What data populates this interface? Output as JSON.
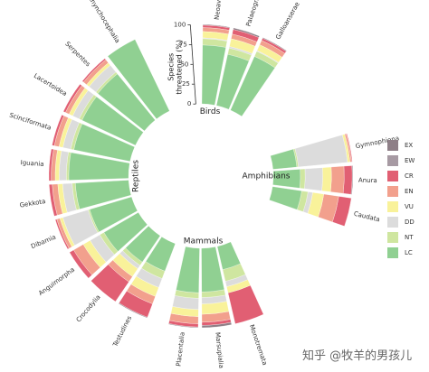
{
  "chart_data": {
    "type": "bar",
    "categories_order": [
      "EX",
      "EW",
      "CR",
      "EN",
      "VU",
      "DD",
      "NT",
      "LC"
    ],
    "colors": {
      "EX": "#8e7f87",
      "EW": "#a79aa3",
      "CR": "#e15f73",
      "EN": "#f2a08d",
      "VU": "#f9f29a",
      "DD": "#dcdcdc",
      "NT": "#cfe6a0",
      "LC": "#90d092"
    },
    "y_axis": {
      "label": "Species\nthreatened (%)",
      "range": [
        0,
        100
      ],
      "ticks": [
        "0",
        "25",
        "50",
        "75",
        "100"
      ]
    },
    "groups": [
      {
        "name": "Reptiles",
        "orders": [
          {
            "name": "Testudines",
            "values": {
              "EX": 1,
              "EW": 0,
              "CR": 18,
              "EN": 10,
              "VU": 12,
              "DD": 12,
              "NT": 10,
              "LC": 37
            }
          },
          {
            "name": "Crocodylia",
            "values": {
              "EX": 0,
              "EW": 0,
              "CR": 30,
              "EN": 8,
              "VU": 12,
              "DD": 5,
              "NT": 5,
              "LC": 40
            }
          },
          {
            "name": "Anguimorpha",
            "values": {
              "EX": 0,
              "EW": 0,
              "CR": 6,
              "EN": 14,
              "VU": 10,
              "DD": 14,
              "NT": 6,
              "LC": 50
            }
          },
          {
            "name": "Dibamia",
            "values": {
              "EX": 0,
              "EW": 0,
              "CR": 2,
              "EN": 4,
              "VU": 4,
              "DD": 33,
              "NT": 2,
              "LC": 55
            }
          },
          {
            "name": "Gekkota",
            "values": {
              "EX": 0,
              "EW": 0,
              "CR": 4,
              "EN": 7,
              "VU": 6,
              "DD": 12,
              "NT": 4,
              "LC": 67
            }
          },
          {
            "name": "Iguania",
            "values": {
              "EX": 0,
              "EW": 0,
              "CR": 3,
              "EN": 5,
              "VU": 5,
              "DD": 9,
              "NT": 3,
              "LC": 75
            }
          },
          {
            "name": "Scinciformata",
            "values": {
              "EX": 0,
              "EW": 0,
              "CR": 3,
              "EN": 6,
              "VU": 5,
              "DD": 10,
              "NT": 4,
              "LC": 72
            }
          },
          {
            "name": "Lacertoidea",
            "values": {
              "EX": 0,
              "EW": 0,
              "CR": 3,
              "EN": 5,
              "VU": 5,
              "DD": 9,
              "NT": 4,
              "LC": 74
            }
          },
          {
            "name": "Serpentes",
            "values": {
              "EX": 0,
              "EW": 0,
              "CR": 2,
              "EN": 5,
              "VU": 4,
              "DD": 11,
              "NT": 3,
              "LC": 75
            }
          },
          {
            "name": "Rhynchocephalia",
            "values": {
              "EX": 0,
              "EW": 0,
              "CR": 0,
              "EN": 0,
              "VU": 0,
              "DD": 0,
              "NT": 0,
              "LC": 100
            }
          }
        ]
      },
      {
        "name": "Birds",
        "orders": [
          {
            "name": "Neoaves",
            "values": {
              "EX": 1,
              "EW": 0,
              "CR": 3,
              "EN": 5,
              "VU": 8,
              "DD": 1,
              "NT": 8,
              "LC": 74
            }
          },
          {
            "name": "Palaeognathae",
            "values": {
              "EX": 2,
              "EW": 0,
              "CR": 6,
              "EN": 6,
              "VU": 10,
              "DD": 2,
              "NT": 8,
              "LC": 66
            }
          },
          {
            "name": "Galloanserae",
            "values": {
              "EX": 1,
              "EW": 0,
              "CR": 3,
              "EN": 6,
              "VU": 8,
              "DD": 1,
              "NT": 7,
              "LC": 74
            }
          }
        ]
      },
      {
        "name": "Amphibians",
        "orders": [
          {
            "name": "Gymnophiona",
            "values": {
              "EX": 0,
              "EW": 0,
              "CR": 1,
              "EN": 2,
              "VU": 3,
              "DD": 62,
              "NT": 2,
              "LC": 30
            }
          },
          {
            "name": "Anura",
            "values": {
              "EX": 1,
              "EW": 0,
              "CR": 10,
              "EN": 16,
              "VU": 11,
              "DD": 22,
              "NT": 6,
              "LC": 34
            }
          },
          {
            "name": "Caudata",
            "values": {
              "EX": 0,
              "EW": 0,
              "CR": 16,
              "EN": 19,
              "VU": 14,
              "DD": 6,
              "NT": 8,
              "LC": 37
            }
          }
        ]
      },
      {
        "name": "Mammals",
        "orders": [
          {
            "name": "Monotremata",
            "values": {
              "EX": 0,
              "EW": 0,
              "CR": 40,
              "EN": 0,
              "VU": 8,
              "DD": 7,
              "NT": 15,
              "LC": 30
            }
          },
          {
            "name": "Marsupialia",
            "values": {
              "EX": 3,
              "EW": 0,
              "CR": 4,
              "EN": 10,
              "VU": 13,
              "DD": 8,
              "NT": 7,
              "LC": 55
            }
          },
          {
            "name": "Placentalia",
            "values": {
              "EX": 1,
              "EW": 0,
              "CR": 4,
              "EN": 9,
              "VU": 9,
              "DD": 14,
              "NT": 7,
              "LC": 56
            }
          }
        ]
      }
    ]
  },
  "legend": [
    "EX",
    "EW",
    "CR",
    "EN",
    "VU",
    "DD",
    "NT",
    "LC"
  ],
  "watermark": "知乎 @牧羊的男孩儿"
}
